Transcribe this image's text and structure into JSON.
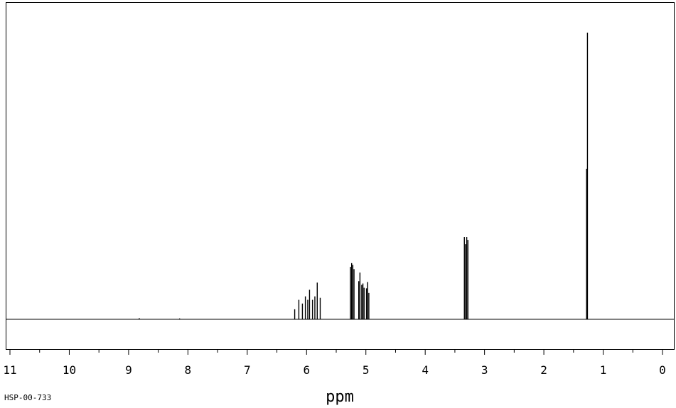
{
  "chart_data": {
    "type": "line",
    "title": "",
    "xlabel": "ppm",
    "ylabel": "",
    "xlim": [
      11,
      0
    ],
    "x_reversed": true,
    "ylim": [
      0,
      1
    ],
    "grid": false,
    "legend": "none",
    "xticks": [
      {
        "value": 11,
        "label": "11"
      },
      {
        "value": 10,
        "label": "10"
      },
      {
        "value": 9,
        "label": "9"
      },
      {
        "value": 8,
        "label": "8"
      },
      {
        "value": 7,
        "label": "7"
      },
      {
        "value": 6,
        "label": "6"
      },
      {
        "value": 5,
        "label": "5"
      },
      {
        "value": 4,
        "label": "4"
      },
      {
        "value": 3,
        "label": "3"
      },
      {
        "value": 2,
        "label": "2"
      },
      {
        "value": 1,
        "label": "1"
      },
      {
        "value": 0,
        "label": "0"
      }
    ],
    "peaks": [
      {
        "ppm": 6.2,
        "height": 0.035
      },
      {
        "ppm": 6.13,
        "height": 0.068
      },
      {
        "ppm": 6.07,
        "height": 0.055
      },
      {
        "ppm": 6.02,
        "height": 0.08
      },
      {
        "ppm": 5.98,
        "height": 0.068
      },
      {
        "ppm": 5.95,
        "height": 0.103
      },
      {
        "ppm": 5.9,
        "height": 0.068
      },
      {
        "ppm": 5.86,
        "height": 0.08
      },
      {
        "ppm": 5.82,
        "height": 0.128
      },
      {
        "ppm": 5.77,
        "height": 0.075
      },
      {
        "ppm": 5.26,
        "height": 0.183
      },
      {
        "ppm": 5.24,
        "height": 0.196
      },
      {
        "ppm": 5.22,
        "height": 0.19
      },
      {
        "ppm": 5.2,
        "height": 0.175
      },
      {
        "ppm": 5.12,
        "height": 0.133
      },
      {
        "ppm": 5.1,
        "height": 0.163
      },
      {
        "ppm": 5.07,
        "height": 0.12
      },
      {
        "ppm": 5.05,
        "height": 0.125
      },
      {
        "ppm": 5.03,
        "height": 0.11
      },
      {
        "ppm": 4.99,
        "height": 0.108
      },
      {
        "ppm": 4.97,
        "height": 0.13
      },
      {
        "ppm": 4.95,
        "height": 0.092
      },
      {
        "ppm": 3.34,
        "height": 0.287
      },
      {
        "ppm": 3.32,
        "height": 0.262
      },
      {
        "ppm": 3.3,
        "height": 0.287
      },
      {
        "ppm": 3.28,
        "height": 0.277
      },
      {
        "ppm": 1.28,
        "height": 0.525
      },
      {
        "ppm": 1.265,
        "height": 1.0
      }
    ],
    "minor_peaks": [
      {
        "ppm": 8.82,
        "height": 0.004
      },
      {
        "ppm": 8.14,
        "height": 0.003
      }
    ]
  },
  "footer": {
    "sample_id": "HSP-00-733"
  }
}
